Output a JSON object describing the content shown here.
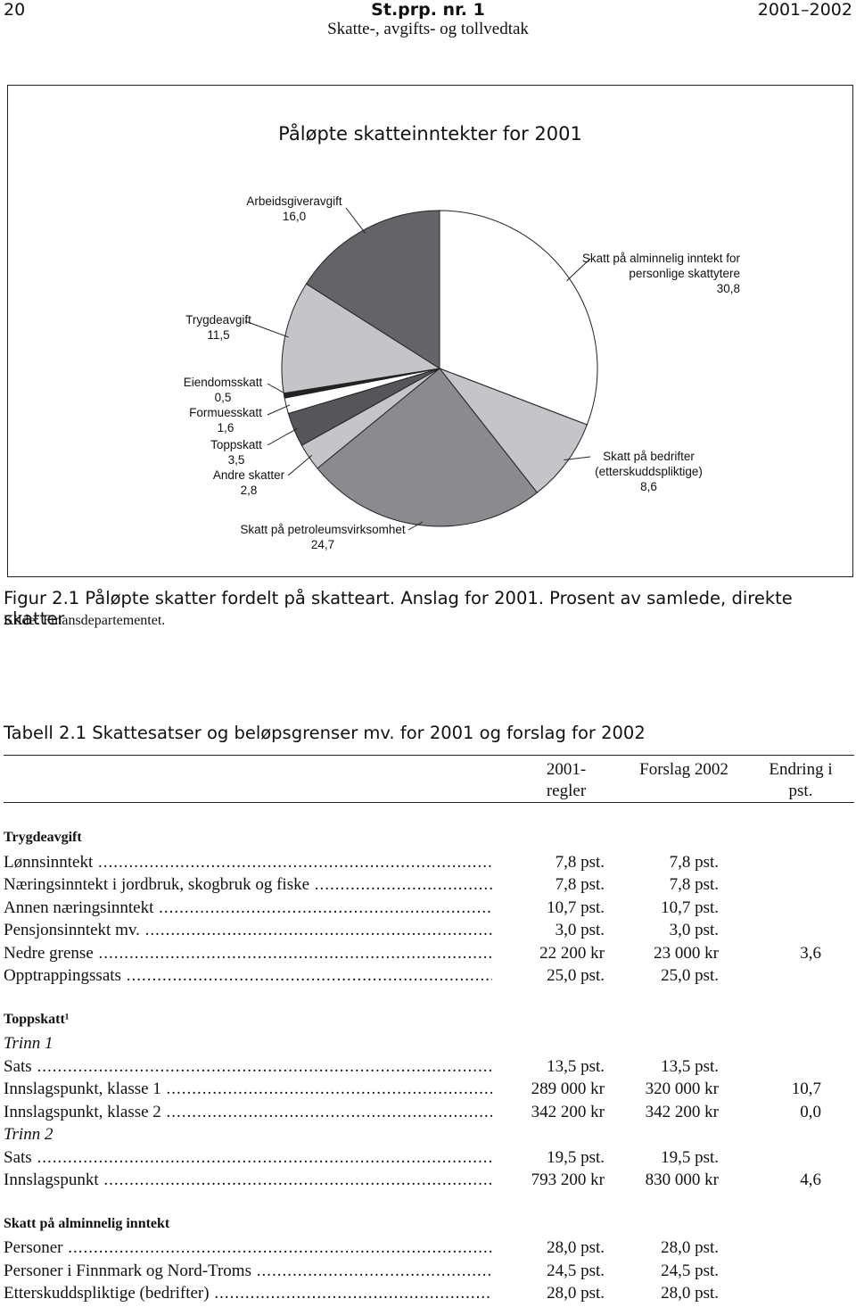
{
  "header": {
    "page_number": "20",
    "publication": "St.prp. nr. 1",
    "years": "2001–2002",
    "subtitle": "Skatte-, avgifts- og tollvedtak"
  },
  "chart_data": {
    "type": "pie",
    "title": "Påløpte skatteinntekter for 2001",
    "categories": [
      "Skatt på alminnelig inntekt for personlige skattytere",
      "Skatt på bedrifter (etterskuddspliktige)",
      "Skatt på petroleumsvirksomhet",
      "Andre skatter",
      "Toppskatt",
      "Formuesskatt",
      "Eiendomsskatt",
      "Trygdeavgift",
      "Arbeidsgiveravgift"
    ],
    "values": [
      30.8,
      8.6,
      24.7,
      2.8,
      3.5,
      1.6,
      0.5,
      11.5,
      16.0
    ],
    "value_labels": [
      "30,8",
      "8,6",
      "24,7",
      "2,8",
      "3,5",
      "1,6",
      "0,5",
      "11,5",
      "16,0"
    ],
    "colors": [
      "#ffffff",
      "#c4c5c8",
      "#8a8b8f",
      "#c4c5c8",
      "#55565a",
      "#ffffff",
      "#222222",
      "#c4c5c8",
      "#636468"
    ]
  },
  "figure": {
    "caption": "Figur 2.1 Påløpte skatter fordelt på skatteart. Anslag for 2001. Prosent av samlede, direkte skatter",
    "source": "Kilde: Finansdepartementet."
  },
  "table": {
    "title": "Tabell 2.1 Skattesatser og beløpsgrenser mv. for 2001 og forslag for 2002",
    "columns": [
      "2001- regler",
      "Forslag 2002",
      "Endring i pst."
    ],
    "sections": [
      {
        "heading": "Trygdeavgift",
        "rows": [
          {
            "label": "Lønnsinntekt",
            "values": [
              "7,8 pst.",
              "7,8 pst."
            ]
          },
          {
            "label": "Næringsinntekt i jordbruk, skogbruk og fiske",
            "values": [
              "7,8 pst.",
              "7,8 pst."
            ]
          },
          {
            "label": "Annen næringsinntekt",
            "values": [
              "10,7 pst.",
              "10,7 pst."
            ]
          },
          {
            "label": "Pensjonsinntekt mv.",
            "values": [
              "3,0 pst.",
              "3,0 pst."
            ]
          },
          {
            "label": "Nedre grense",
            "values": [
              "22 200 kr",
              "23 000 kr",
              "3,6"
            ]
          },
          {
            "label": "Opptrappingssats",
            "values": [
              "25,0 pst.",
              "25,0 pst."
            ]
          }
        ]
      },
      {
        "heading": "Toppskatt¹",
        "rows": [
          {
            "subheading": "Trinn 1"
          },
          {
            "label": "Sats",
            "values": [
              "13,5 pst.",
              "13,5 pst."
            ]
          },
          {
            "label": "Innslagspunkt, klasse 1",
            "values": [
              "289 000 kr",
              "320 000 kr",
              "10,7"
            ]
          },
          {
            "label": "Innslagspunkt, klasse 2",
            "values": [
              "342 200 kr",
              "342 200 kr",
              "0,0"
            ]
          },
          {
            "subheading": "Trinn 2"
          },
          {
            "label": "Sats",
            "values": [
              "19,5 pst.",
              "19,5 pst."
            ]
          },
          {
            "label": "Innslagspunkt",
            "values": [
              "793 200 kr",
              "830 000 kr",
              "4,6"
            ]
          }
        ]
      },
      {
        "heading": "Skatt på alminnelig inntekt",
        "rows": [
          {
            "label": "Personer",
            "values": [
              "28,0 pst.",
              "28,0 pst."
            ]
          },
          {
            "label": "Personer i Finnmark og Nord-Troms",
            "values": [
              "24,5 pst.",
              "24,5 pst."
            ]
          },
          {
            "label": "Etterskuddspliktige (bedrifter)",
            "values": [
              "28,0 pst.",
              "28,0 pst."
            ]
          }
        ]
      }
    ]
  }
}
